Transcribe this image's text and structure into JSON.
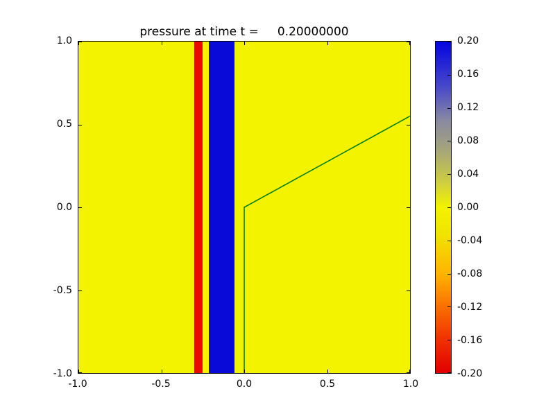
{
  "chart_data": {
    "type": "heatmap",
    "title": "pressure at time t =     0.20000000",
    "time_value": "0.20000000",
    "xlim": [
      -1.0,
      1.0
    ],
    "ylim": [
      -1.0,
      1.0
    ],
    "grid": false,
    "xticks": [
      -1.0,
      -0.5,
      0.0,
      0.5,
      1.0
    ],
    "yticks": [
      1.0,
      0.5,
      0.0,
      -0.5,
      -1.0
    ],
    "xtick_labels": [
      "-1.0",
      "-0.5",
      "0.0",
      "0.5",
      "1.0"
    ],
    "ytick_labels": [
      "1.0",
      "0.5",
      "0.0",
      "-0.5",
      "-1.0"
    ],
    "background": {
      "value": 0.0,
      "color": "#f3f300"
    },
    "stripes": [
      {
        "name": "negative-pressure-stripe",
        "x0": -0.3,
        "x1": -0.25,
        "value": -0.2,
        "color": "#e80c00"
      },
      {
        "name": "positive-pressure-stripe",
        "x0": -0.215,
        "x1": -0.06,
        "value": 0.2,
        "color": "#0a0ad8"
      }
    ],
    "line": {
      "name": "interface-contour",
      "color": "#067f06",
      "width": 1.6,
      "points": [
        [
          0.0,
          -1.0
        ],
        [
          0.0,
          0.0
        ],
        [
          1.0,
          0.55
        ]
      ]
    },
    "colorbar": {
      "min": -0.2,
      "max": 0.2,
      "tick_labels": [
        "0.20",
        "0.16",
        "0.12",
        "0.08",
        "0.04",
        "0.00",
        "-0.04",
        "-0.08",
        "-0.12",
        "-0.16",
        "-0.20"
      ],
      "gradient_stops_bottom_to_top": [
        {
          "t": 0.0,
          "color": "#e00000"
        },
        {
          "t": 0.1,
          "color": "#f03000"
        },
        {
          "t": 0.2,
          "color": "#fa7000"
        },
        {
          "t": 0.3,
          "color": "#ffb400"
        },
        {
          "t": 0.42,
          "color": "#f0e400"
        },
        {
          "t": 0.5,
          "color": "#f3f300"
        },
        {
          "t": 0.58,
          "color": "#cccc44"
        },
        {
          "t": 0.68,
          "color": "#a2a27e"
        },
        {
          "t": 0.76,
          "color": "#8a8aa0"
        },
        {
          "t": 0.86,
          "color": "#4a4ac8"
        },
        {
          "t": 1.0,
          "color": "#0404e0"
        }
      ]
    }
  }
}
